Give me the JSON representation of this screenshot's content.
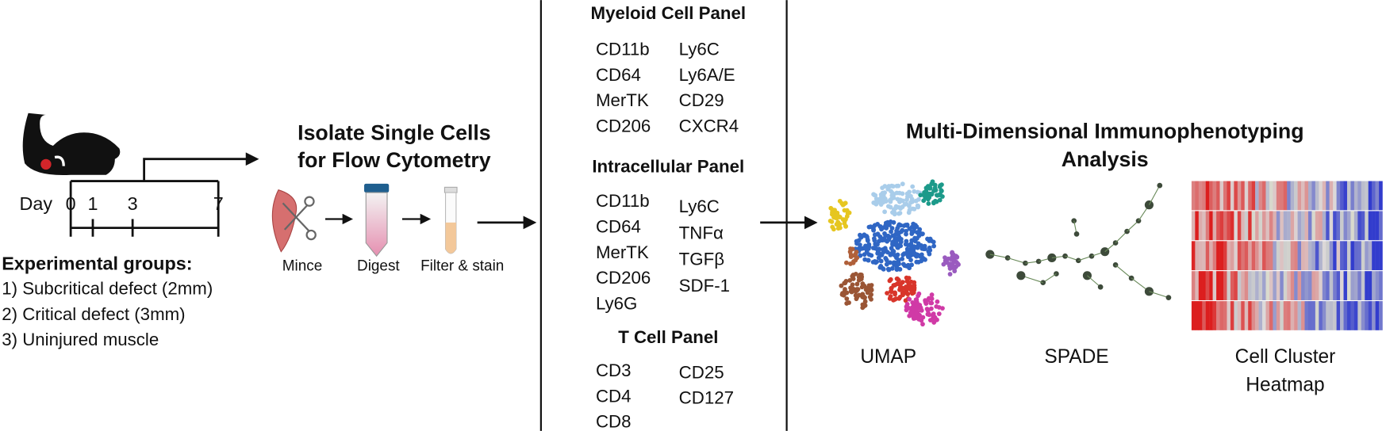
{
  "timeline": {
    "day_label": "Day",
    "days": [
      "0",
      "1",
      "3",
      "7"
    ]
  },
  "groups": {
    "title": "Experimental groups:",
    "items": [
      "1) Subcritical defect (2mm)",
      "2) Critical defect (3mm)",
      "3) Uninjured muscle"
    ]
  },
  "isolation": {
    "title": [
      "Isolate Single Cells",
      "for Flow Cytometry"
    ],
    "steps": [
      "Mince",
      "Digest",
      "Filter & stain"
    ]
  },
  "panels": [
    {
      "title": "Myeloid Cell Panel",
      "columns": [
        [
          "CD11b",
          "CD64",
          "MerTK",
          "CD206"
        ],
        [
          "Ly6C",
          "Ly6A/E",
          "CD29",
          "CXCR4"
        ]
      ]
    },
    {
      "title": "Intracellular Panel",
      "columns": [
        [
          "CD11b",
          "CD64",
          "MerTK",
          "CD206",
          "Ly6G"
        ],
        [
          "Ly6C",
          "TNFα",
          "TGFβ",
          "SDF-1"
        ]
      ]
    },
    {
      "title": "T Cell Panel",
      "columns": [
        [
          "CD3",
          "CD4",
          "CD8"
        ],
        [
          "CD25",
          "CD127"
        ]
      ]
    }
  ],
  "analysis": {
    "title": [
      "Multi-Dimensional Immunophenotyping",
      "Analysis"
    ],
    "methods": [
      "UMAP",
      "SPADE",
      "Cell Cluster",
      "Heatmap"
    ]
  }
}
